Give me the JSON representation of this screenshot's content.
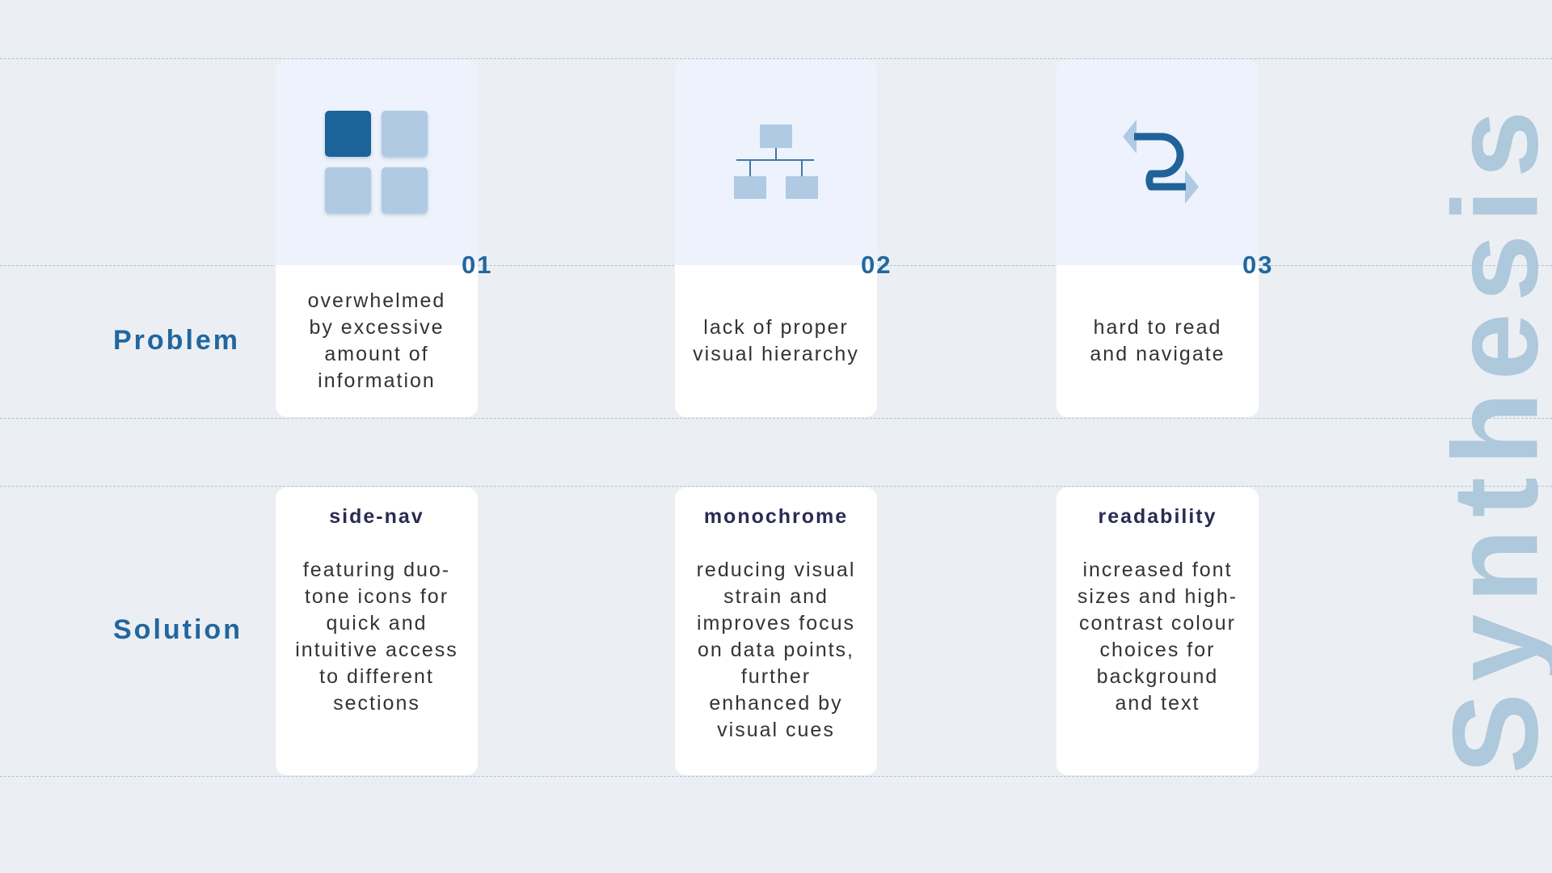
{
  "side_title": "Synthesis",
  "rows": {
    "problem_label": "Problem",
    "solution_label": "Solution"
  },
  "colors": {
    "background": "#ebeff3",
    "accent": "#22669e",
    "icon_dark": "#1f6399",
    "icon_light": "#afcae2",
    "icon_zone": "#edf2fc",
    "watermark": "#aec8dc"
  },
  "items": [
    {
      "number": "01",
      "icon": "grid-icon",
      "problem": "overwhelmed by excessive amount of information",
      "solution_title": "side-nav",
      "solution_text": "featuring duo-tone icons for quick and intuitive access to different sections"
    },
    {
      "number": "02",
      "icon": "hierarchy-icon",
      "problem": "lack of proper visual hierarchy",
      "solution_title": "monochrome",
      "solution_text": "reducing visual strain and improves focus on data points, further enhanced by visual cues"
    },
    {
      "number": "03",
      "icon": "flow-arrows-icon",
      "problem": "hard to read and navigate",
      "solution_title": "readability",
      "solution_text": "increased font sizes and high-contrast colour choices for background and text"
    }
  ]
}
